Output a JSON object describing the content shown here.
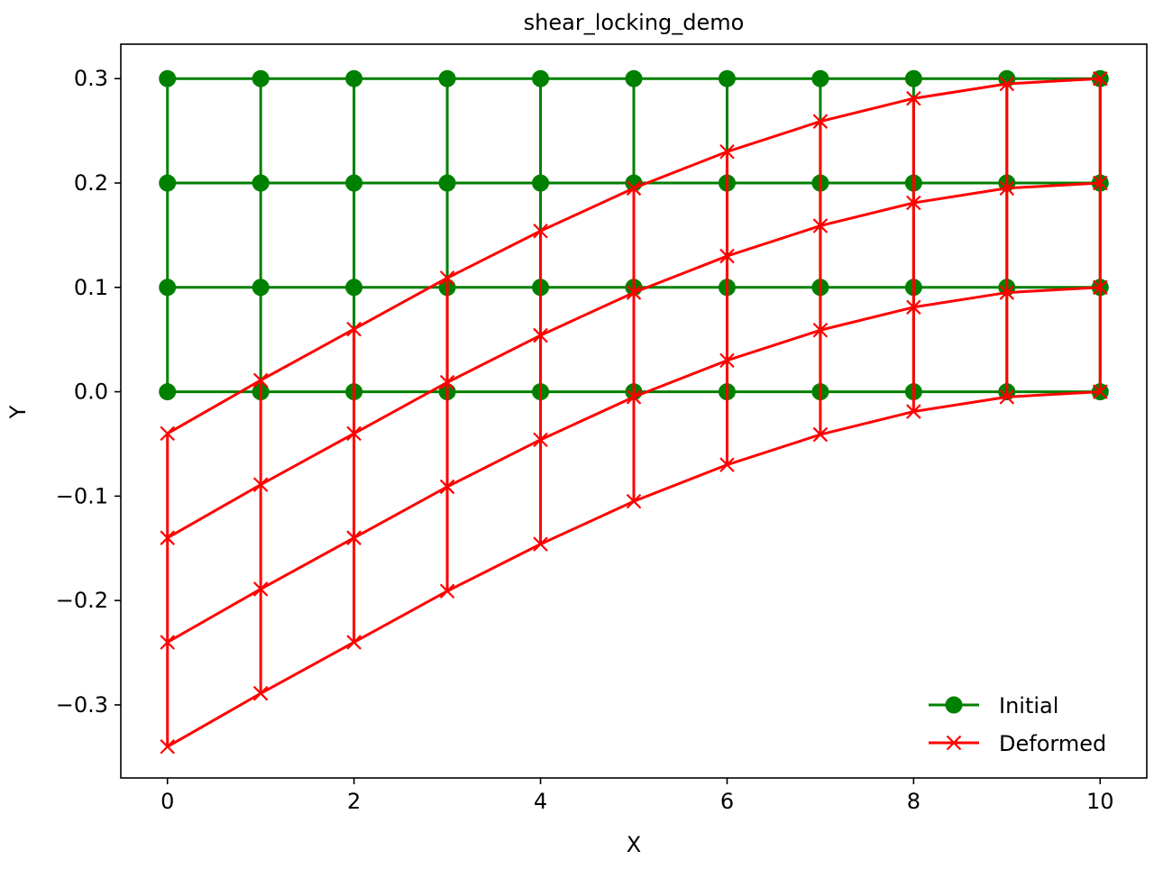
{
  "chart_data": {
    "type": "line",
    "title": "shear_locking_demo",
    "xlabel": "X",
    "ylabel": "Y",
    "xlim": [
      -0.5,
      10.5
    ],
    "ylim": [
      -0.37,
      0.333
    ],
    "xticks": [
      0,
      2,
      4,
      6,
      8,
      10
    ],
    "xtick_labels": [
      "0",
      "2",
      "4",
      "6",
      "8",
      "10"
    ],
    "yticks": [
      -0.3,
      -0.2,
      -0.1,
      0.0,
      0.1,
      0.2,
      0.3
    ],
    "ytick_labels": [
      "−0.3",
      "−0.2",
      "−0.1",
      "0.0",
      "0.1",
      "0.2",
      "0.3"
    ],
    "grid": false,
    "legend_position": "lower-right",
    "x": [
      0,
      1,
      2,
      3,
      4,
      5,
      6,
      7,
      8,
      9,
      10
    ],
    "rows_y": [
      0.0,
      0.1,
      0.2,
      0.3
    ],
    "deflection": [
      -0.34,
      -0.289,
      -0.24,
      -0.191,
      -0.146,
      -0.105,
      -0.07,
      -0.041,
      -0.019,
      -0.005,
      0.0
    ],
    "series": [
      {
        "name": "Initial",
        "color": "#008000",
        "marker": "circle",
        "rows": [
          [
            0.0,
            0.0,
            0.0,
            0.0,
            0.0,
            0.0,
            0.0,
            0.0,
            0.0,
            0.0,
            0.0
          ],
          [
            0.1,
            0.1,
            0.1,
            0.1,
            0.1,
            0.1,
            0.1,
            0.1,
            0.1,
            0.1,
            0.1
          ],
          [
            0.2,
            0.2,
            0.2,
            0.2,
            0.2,
            0.2,
            0.2,
            0.2,
            0.2,
            0.2,
            0.2
          ],
          [
            0.3,
            0.3,
            0.3,
            0.3,
            0.3,
            0.3,
            0.3,
            0.3,
            0.3,
            0.3,
            0.3
          ]
        ]
      },
      {
        "name": "Deformed",
        "color": "#ff0000",
        "marker": "x",
        "rows": [
          [
            -0.34,
            -0.289,
            -0.24,
            -0.191,
            -0.146,
            -0.105,
            -0.07,
            -0.041,
            -0.019,
            -0.005,
            0.0
          ],
          [
            -0.24,
            -0.189,
            -0.14,
            -0.091,
            -0.046,
            -0.005,
            0.03,
            0.059,
            0.081,
            0.095,
            0.1
          ],
          [
            -0.14,
            -0.089,
            -0.04,
            0.009,
            0.054,
            0.095,
            0.13,
            0.159,
            0.181,
            0.195,
            0.2
          ],
          [
            -0.04,
            0.011,
            0.06,
            0.109,
            0.154,
            0.195,
            0.23,
            0.259,
            0.281,
            0.295,
            0.3
          ]
        ]
      }
    ]
  }
}
